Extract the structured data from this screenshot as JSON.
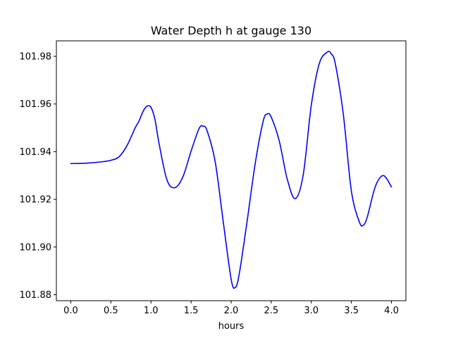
{
  "chart_data": {
    "type": "line",
    "title": "Water Depth h at gauge 130",
    "xlabel": "hours",
    "ylabel": "",
    "xlim": [
      -0.18,
      4.18
    ],
    "ylim": [
      101.8775,
      101.9865
    ],
    "xticks": [
      0.0,
      0.5,
      1.0,
      1.5,
      2.0,
      2.5,
      3.0,
      3.5,
      4.0
    ],
    "xtick_labels": [
      "0.0",
      "0.5",
      "1.0",
      "1.5",
      "2.0",
      "2.5",
      "3.0",
      "3.5",
      "4.0"
    ],
    "yticks": [
      101.88,
      101.9,
      101.92,
      101.94,
      101.96,
      101.98
    ],
    "ytick_labels": [
      "101.88",
      "101.90",
      "101.92",
      "101.94",
      "101.96",
      "101.98"
    ],
    "grid": false,
    "legend": "none",
    "series": [
      {
        "color": "#0000ff",
        "x": [
          0.0,
          0.2,
          0.4,
          0.5,
          0.6,
          0.7,
          0.8,
          0.85,
          0.9,
          0.95,
          1.0,
          1.05,
          1.1,
          1.2,
          1.3,
          1.4,
          1.5,
          1.6,
          1.65,
          1.7,
          1.8,
          1.9,
          2.0,
          2.05,
          2.1,
          2.2,
          2.3,
          2.4,
          2.45,
          2.5,
          2.6,
          2.7,
          2.8,
          2.9,
          3.0,
          3.1,
          3.2,
          3.25,
          3.3,
          3.4,
          3.5,
          3.6,
          3.65,
          3.7,
          3.8,
          3.9,
          4.0
        ],
        "values": [
          101.935,
          101.9352,
          101.9358,
          101.9364,
          101.9378,
          101.9425,
          101.9498,
          101.9528,
          101.9568,
          101.9591,
          101.9586,
          101.9535,
          101.9436,
          101.9281,
          101.9249,
          101.9296,
          101.9402,
          101.9497,
          101.9507,
          101.9488,
          101.936,
          101.911,
          101.8865,
          101.883,
          101.8885,
          101.911,
          101.935,
          101.9528,
          101.9558,
          101.9545,
          101.9445,
          101.9285,
          101.9203,
          101.9305,
          101.9595,
          101.977,
          101.9818,
          101.981,
          101.9768,
          101.9555,
          101.9235,
          101.9105,
          101.9092,
          101.9128,
          101.9255,
          101.93,
          101.9252
        ]
      }
    ]
  }
}
